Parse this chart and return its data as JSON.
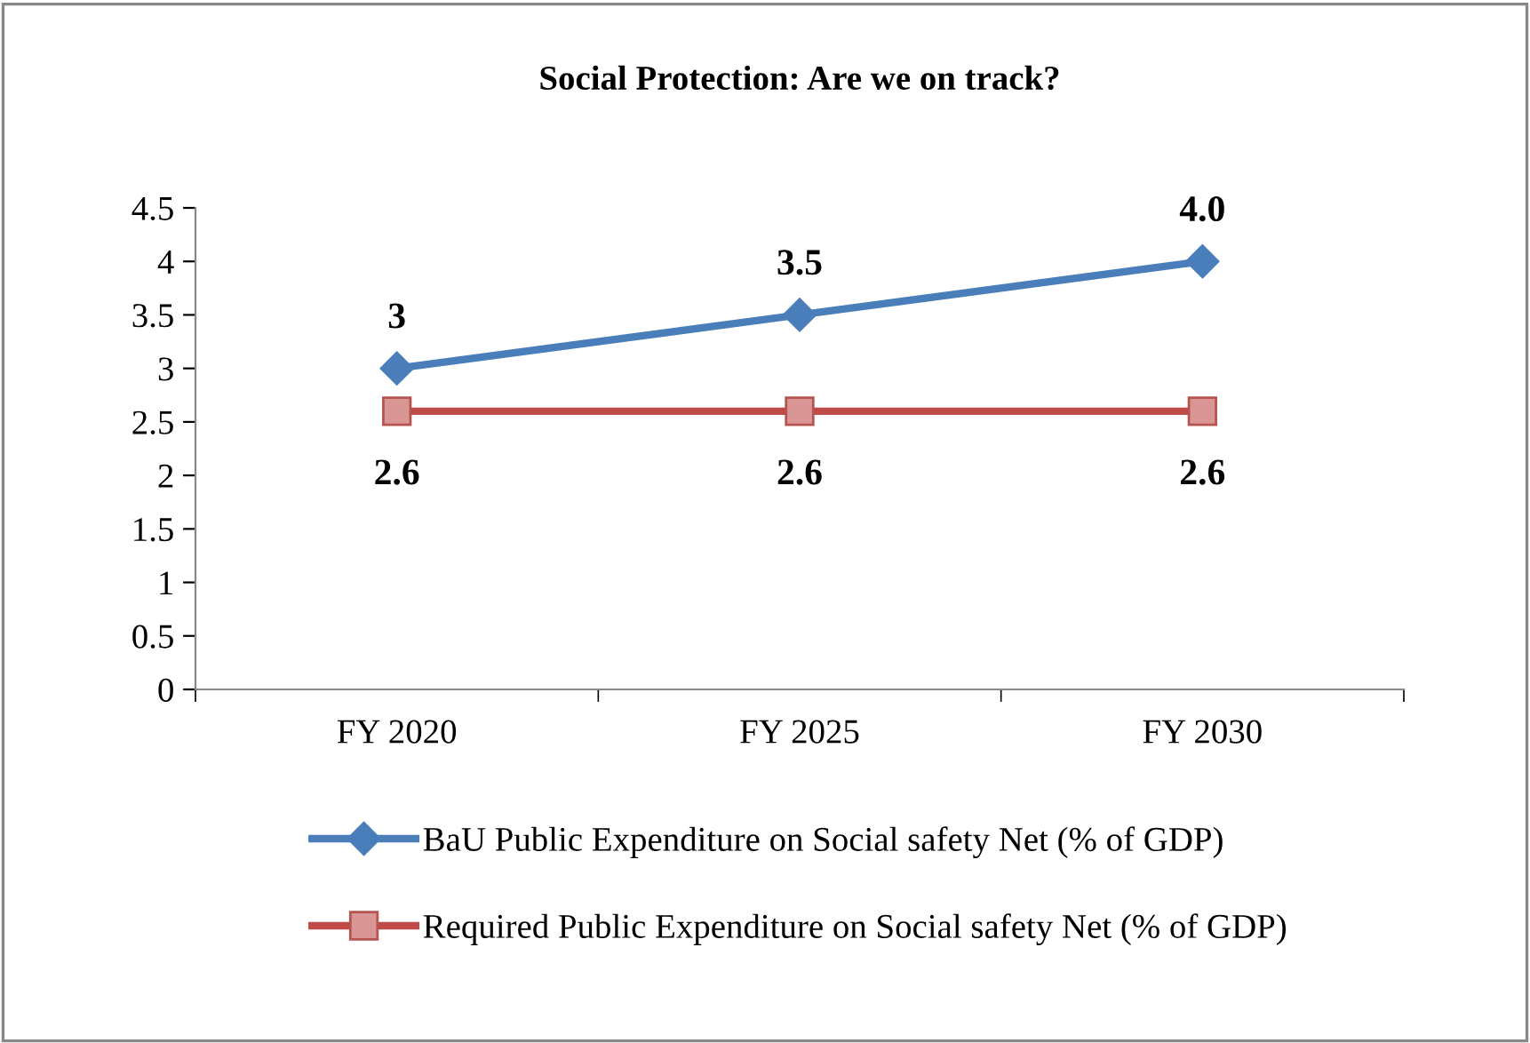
{
  "chart_data": {
    "type": "line",
    "title": "Social Protection: Are we on track?",
    "categories": [
      "FY 2020",
      "FY 2025",
      "FY 2030"
    ],
    "series": [
      {
        "name": "BaU Public Expenditure on Social safety Net (% of GDP)",
        "color": "#4a7ebb",
        "marker": "diamond",
        "values": [
          3,
          3.5,
          4.0
        ],
        "value_labels": [
          "3",
          "3.5",
          "4.0"
        ]
      },
      {
        "name": "Required Public Expenditure on Social safety Net (% of GDP)",
        "color": "#be4b48",
        "marker": "square",
        "values": [
          2.6,
          2.6,
          2.6
        ],
        "value_labels": [
          "2.6",
          "2.6",
          "2.6"
        ]
      }
    ],
    "ylim": [
      0,
      4.5
    ],
    "yticks": [
      0,
      0.5,
      1,
      1.5,
      2,
      2.5,
      3,
      3.5,
      4,
      4.5
    ],
    "grid": false,
    "legend": "bottom"
  }
}
